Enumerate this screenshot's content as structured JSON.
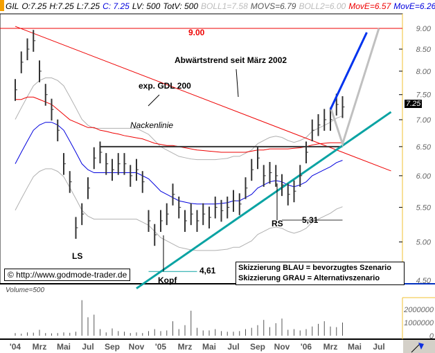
{
  "header": {
    "symbol": "GIL",
    "open": "O:7.25",
    "high": "H:7.25",
    "low": "L:7.25",
    "close": "C: 7.25",
    "lv": "LV: 500",
    "totv": "TotV: 500",
    "boll1": "BOLL1=7.58",
    "movs": "MOVS=6.79",
    "boll2": "BOLL2=6.00",
    "move_red": "MovE=6.57",
    "move_blue": "MovE=6.26"
  },
  "annotations": {
    "level_900": "9.00",
    "downtrend": "Abwärtstrend seit März 2002",
    "gdl": "exp. GDL 200",
    "neckline": "Nackenlinie",
    "ls": "LS",
    "head": "Kopf",
    "rs": "RS",
    "low_head": "4,61",
    "low_rs": "5,31",
    "legend_blue": "Skizzierung BLAU = bevorzugtes Szenario",
    "legend_grey": "Skizzierung GRAU = Alternativszenario",
    "copyright": "© http://www.godmode-trader.de",
    "last_price_tag": "7.25",
    "volume_label": "Volume=500"
  },
  "colors": {
    "price": "#333333",
    "ma_red": "#ee0000",
    "ma_blue": "#0000dd",
    "boll": "#b0b0b0",
    "uptrend": "#0aa3a3",
    "scenario_blue": "#0033ee",
    "scenario_grey": "#c0c0c0",
    "axis": "#f0c030"
  },
  "chart_data": {
    "type": "bar",
    "yscale": "log",
    "ylim": [
      4.4,
      9.3
    ],
    "yticks": [
      "9.00",
      "8.50",
      "8.00",
      "7.50",
      "7.00",
      "6.50",
      "6.00",
      "5.50",
      "5.00",
      "4.50"
    ],
    "xticks": [
      "'04",
      "Mrz",
      "Mai",
      "Jul",
      "Sep",
      "Nov",
      "'05",
      "Mrz",
      "Mai",
      "Jul",
      "Sep",
      "Nov",
      "'06",
      "Mrz",
      "Mai",
      "Jul"
    ],
    "x_start": "2004-01",
    "x_step": "half-month",
    "close": [
      7.6,
      8.2,
      8.5,
      8.7,
      8.0,
      7.5,
      7.2,
      6.8,
      6.2,
      5.9,
      5.2,
      5.4,
      5.8,
      6.3,
      6.4,
      6.2,
      6.1,
      6.2,
      6.2,
      6.0,
      6.1,
      5.9,
      5.3,
      5.1,
      5.3,
      5.4,
      5.7,
      5.5,
      5.3,
      5.4,
      5.3,
      5.4,
      5.35,
      5.5,
      5.45,
      5.5,
      5.6,
      5.55,
      5.8,
      6.1,
      6.3,
      6.0,
      6.05,
      6.0,
      5.85,
      5.7,
      5.75,
      6.0,
      6.4,
      6.8,
      6.9,
      7.0,
      7.0,
      7.3,
      7.25
    ],
    "ma_red": [
      7.4,
      7.4,
      7.45,
      7.45,
      7.4,
      7.35,
      7.3,
      7.2,
      7.1,
      7.0,
      6.95,
      6.9,
      6.85,
      6.85,
      6.8,
      6.78,
      6.75,
      6.73,
      6.7,
      6.68,
      6.66,
      6.64,
      6.6,
      6.56,
      6.54,
      6.52,
      6.52,
      6.5,
      6.48,
      6.46,
      6.44,
      6.43,
      6.42,
      6.41,
      6.4,
      6.4,
      6.4,
      6.4,
      6.4,
      6.42,
      6.44,
      6.44,
      6.46,
      6.46,
      6.46,
      6.46,
      6.47,
      6.48,
      6.5,
      6.53,
      6.55,
      6.56,
      6.57,
      6.57,
      6.57
    ],
    "ma_blue": [
      6.2,
      6.4,
      6.6,
      6.8,
      6.9,
      6.95,
      6.95,
      6.9,
      6.8,
      6.6,
      6.4,
      6.2,
      6.1,
      6.05,
      6.05,
      6.05,
      6.05,
      6.05,
      6.05,
      6.05,
      6.05,
      6.0,
      5.95,
      5.85,
      5.75,
      5.7,
      5.65,
      5.6,
      5.58,
      5.56,
      5.55,
      5.55,
      5.55,
      5.55,
      5.56,
      5.57,
      5.6,
      5.6,
      5.65,
      5.7,
      5.8,
      5.85,
      5.9,
      5.92,
      5.9,
      5.85,
      5.82,
      5.85,
      5.9,
      6.0,
      6.05,
      6.1,
      6.15,
      6.22,
      6.26
    ],
    "volume_yticks": [
      "2000000",
      "1000000",
      "0"
    ],
    "volume": [
      200000,
      150000,
      250000,
      230000,
      450000,
      200000,
      180000,
      200000,
      250000,
      220000,
      300000,
      2700000,
      1400000,
      1600000,
      500000,
      250000,
      550000,
      350000,
      300000,
      200000,
      250000,
      200000,
      350000,
      500000,
      350000,
      400000,
      1100000,
      500000,
      800000,
      1900000,
      600000,
      400000,
      400000,
      500000,
      350000,
      300000,
      300000,
      350000,
      500000,
      600000,
      800000,
      1200000,
      650000,
      950000,
      1300000,
      450000,
      500000,
      400000,
      500000,
      700000,
      900000,
      1100000,
      700000,
      650000,
      1000000
    ],
    "lines": [
      {
        "kind": "horizontal",
        "price": 9.0,
        "color": "ma_red"
      },
      {
        "kind": "downtrend",
        "from": [
          "2004-01",
          9.05
        ],
        "to": [
          "2006-08",
          6.08
        ],
        "color": "ma_red"
      },
      {
        "kind": "neckline",
        "from": [
          "2004-08",
          6.5
        ],
        "to": [
          "2006-04",
          6.5
        ],
        "color": "price"
      },
      {
        "kind": "uptrend",
        "from": [
          "2004-11",
          4.4
        ],
        "to": [
          "2006-08",
          7.15
        ],
        "color": "uptrend"
      },
      {
        "kind": "low-head",
        "from": [
          "2004-12",
          4.61
        ],
        "to": [
          "2005-04",
          4.61
        ],
        "color": "uptrend"
      },
      {
        "kind": "low-rs",
        "from": [
          "2005-11",
          5.31
        ],
        "to": [
          "2006-04",
          5.31
        ],
        "color": "price"
      }
    ],
    "scenario_blue": [
      [
        "2006-03",
        7.2
      ],
      [
        "2006-06",
        8.9
      ]
    ],
    "scenario_grey": [
      [
        "2006-03",
        7.25
      ],
      [
        "2006-04",
        6.55
      ],
      [
        "2006-07",
        9.0
      ]
    ]
  }
}
